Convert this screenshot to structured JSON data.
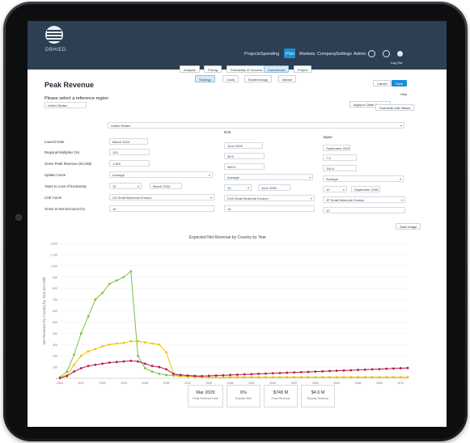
{
  "app": {
    "logo_text": "DBHIED"
  },
  "nav": {
    "items": [
      "Projects",
      "Spending",
      "Plan",
      "Markets",
      "Company",
      "Settings",
      "Admin"
    ],
    "active": "Plan",
    "logout": "Log Out"
  },
  "toolbar": {
    "row1": [
      "Analysis",
      "Pricing",
      "Probability of Success",
      "Commercial",
      "Project"
    ],
    "row1_active": "Commercial",
    "row2": [
      "Strategy",
      "Costs",
      "Epidemiology",
      "Market"
    ],
    "row2_active": "Strategy"
  },
  "page": {
    "title": "Peak Revenue",
    "cancel_label": "Cancel",
    "save_label": "Save",
    "help_label": "Help",
    "region_prompt": "Please select a reference region",
    "region_value": "United States",
    "apply_label": "Apply to Other Regions",
    "overwrite_label": "Overwrite Unit Values"
  },
  "regions": {
    "header_select": "United States",
    "columns": [
      "United States",
      "EU5",
      "Japan"
    ]
  },
  "form": {
    "labels": [
      "Launch Date",
      "Regional Multiplier (%)",
      "Gross Peak Revenue (M US$)",
      "Uptake Curve",
      "Years to Loss of Exclusivity",
      "LOE Curve",
      "Gross to Net Discount (%)"
    ],
    "us": {
      "launch": "March 2024",
      "multiplier": "100",
      "gross_peak": "1,600",
      "uptake": "Average",
      "loe_years": "10",
      "loe_date": "March 2034",
      "loe_curve": "US Small Molecule Erosion",
      "g2n": "10"
    },
    "eu5": {
      "launch": "June 2026",
      "multiplier": "35.5",
      "gross_peak": "568.0",
      "uptake": "Average",
      "loe_years": "10",
      "loe_date": "June 2036",
      "loe_curve": "EU5 Small Molecule Erosion",
      "g2n": "10"
    },
    "japan": {
      "launch": "September 2026",
      "multiplier": "7.3",
      "gross_peak": "116.8",
      "uptake": "Average",
      "loe_years": "10",
      "loe_date": "September 2036",
      "loe_curve": "JP Small Molecule Erosion",
      "g2n": "10"
    }
  },
  "chart_save_label": "Save Image",
  "summary": [
    {
      "value": "Mar 2029",
      "caption": "Peak Revenue Date"
    },
    {
      "value": "6%",
      "caption": "Royalty Rate"
    },
    {
      "value": "$748 M",
      "caption": "Peak Revenue"
    },
    {
      "value": "$4.6 M",
      "caption": "Royalty Revenue"
    }
  ],
  "chart_data": {
    "type": "line",
    "title": "Expected Net Revenue by Country by Year",
    "xlabel": "",
    "ylabel": "Net Revenue by Country by Year (M US$)",
    "ylim": [
      0,
      1200
    ],
    "yticks": [
      0,
      100,
      200,
      300,
      400,
      500,
      600,
      700,
      800,
      900,
      1000,
      1100,
      1200
    ],
    "x": [
      2024,
      2025,
      2026,
      2027,
      2028,
      2029,
      2030,
      2031,
      2032,
      2033,
      2034,
      2035,
      2036,
      2037,
      2038,
      2039,
      2040,
      2041,
      2042,
      2043,
      2044,
      2045,
      2046,
      2047,
      2048,
      2049,
      2050,
      2051,
      2052,
      2053,
      2054,
      2055,
      2056,
      2057,
      2058,
      2059,
      2060,
      2061,
      2062,
      2063,
      2064,
      2065,
      2066,
      2067,
      2068,
      2069,
      2070,
      2071,
      2072,
      2073
    ],
    "xticks": [
      2024,
      2027,
      2030,
      2033,
      2036,
      2039,
      2042,
      2045,
      2048,
      2051,
      2054,
      2057,
      2060,
      2063,
      2066,
      2069,
      2072
    ],
    "series": [
      {
        "color": "#7ac143",
        "values": [
          10,
          60,
          210,
          400,
          550,
          700,
          760,
          840,
          870,
          900,
          950,
          200,
          90,
          60,
          40,
          30,
          25,
          20,
          18,
          15,
          12,
          10,
          10,
          10,
          10,
          10,
          10,
          10,
          10,
          10,
          10,
          10,
          10,
          10,
          10,
          10,
          10,
          10,
          10,
          10,
          10,
          10,
          10,
          10,
          10,
          10,
          10,
          10,
          10,
          10
        ]
      },
      {
        "color": "#f2c300",
        "values": [
          5,
          30,
          120,
          200,
          240,
          260,
          285,
          300,
          310,
          315,
          330,
          330,
          320,
          310,
          300,
          230,
          40,
          20,
          15,
          12,
          10,
          10,
          10,
          10,
          10,
          10,
          10,
          10,
          10,
          10,
          10,
          10,
          10,
          10,
          10,
          10,
          10,
          10,
          10,
          10,
          10,
          10,
          10,
          10,
          10,
          10,
          10,
          10,
          10,
          10
        ]
      },
      {
        "color": "#b5174b",
        "values": [
          2,
          20,
          60,
          90,
          110,
          120,
          130,
          140,
          145,
          150,
          155,
          150,
          130,
          110,
          100,
          80,
          40,
          30,
          25,
          22,
          20,
          22,
          25,
          27,
          30,
          32,
          35,
          37,
          40,
          42,
          45,
          47,
          50,
          52,
          55,
          57,
          60,
          62,
          65,
          67,
          70,
          72,
          75,
          77,
          80,
          82,
          85,
          87,
          90,
          92
        ]
      }
    ]
  }
}
